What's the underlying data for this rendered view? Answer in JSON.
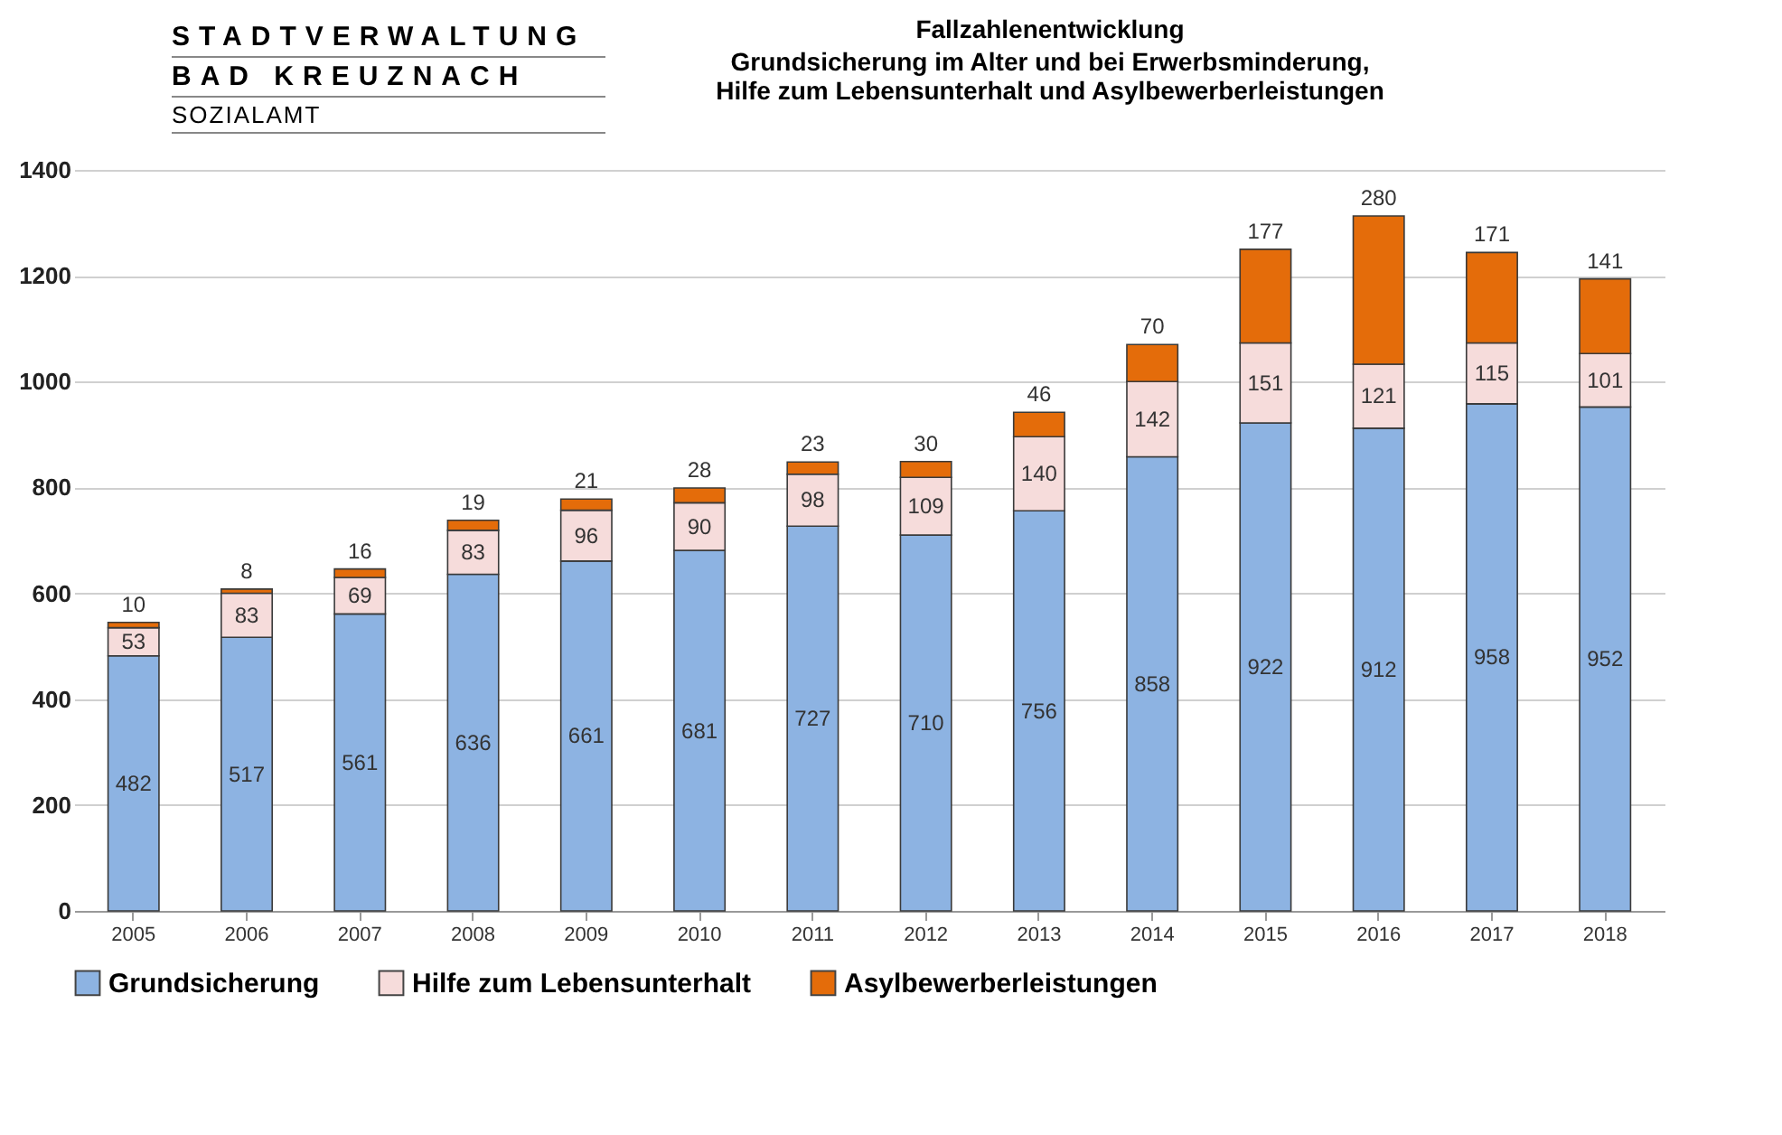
{
  "chart_data": {
    "type": "bar",
    "stacked": true,
    "title": "Fallzahlenentwicklung",
    "subtitle": "Grundsicherung im Alter und bei Erwerbsminderung,\nHilfe zum Lebensunterhalt und Asylbewerberleistungen",
    "annotations": [
      "STADTVERWALTUNG",
      "BAD KREUZNACH",
      "SOZIALAMT"
    ],
    "categories": [
      "2005",
      "2006",
      "2007",
      "2008",
      "2009",
      "2010",
      "2011",
      "2012",
      "2013",
      "2014",
      "2015",
      "2016",
      "2017",
      "2018"
    ],
    "series": [
      {
        "name": "Grundsicherung",
        "color": "#8db3e2",
        "values": [
          482,
          517,
          561,
          636,
          661,
          681,
          727,
          710,
          756,
          858,
          922,
          912,
          958,
          952
        ]
      },
      {
        "name": "Hilfe zum Lebensunterhalt",
        "color": "#f6dcdb",
        "values": [
          53,
          83,
          69,
          83,
          96,
          90,
          98,
          109,
          140,
          142,
          151,
          121,
          115,
          101
        ]
      },
      {
        "name": "Asylbewerberleistungen",
        "color": "#e46c0a",
        "values": [
          10,
          8,
          16,
          19,
          21,
          28,
          23,
          30,
          46,
          70,
          177,
          280,
          171,
          141
        ]
      }
    ],
    "ylim": [
      0,
      1400
    ],
    "yticks": [
      0,
      200,
      400,
      600,
      800,
      1000,
      1200,
      1400
    ],
    "grid": true,
    "legend": "bottom",
    "data_labels": true
  }
}
